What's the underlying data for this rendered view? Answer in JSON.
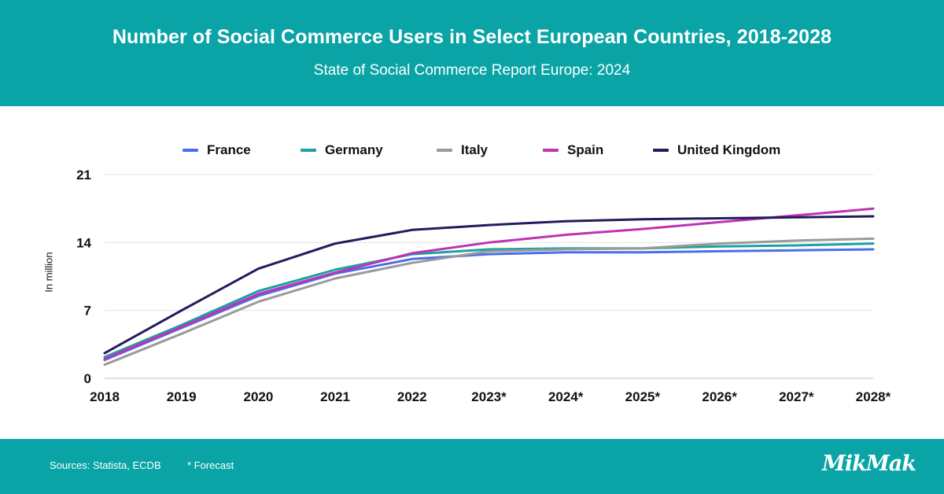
{
  "header": {
    "title": "Number of Social Commerce Users in Select European Countries, 2018-2028",
    "subtitle": "State of Social Commerce Report Europe: 2024"
  },
  "footer": {
    "sources": "Sources: Statista, ECDB",
    "forecast_note": "* Forecast",
    "logo": "MikMak"
  },
  "chart_data": {
    "type": "line",
    "title": "Number of Social Commerce Users in Select European Countries, 2018-2028",
    "subtitle": "State of Social Commerce Report Europe: 2024",
    "ylabel": "In million",
    "xlabel": "",
    "categories": [
      "2018",
      "2019",
      "2020",
      "2021",
      "2022",
      "2023*",
      "2024*",
      "2025*",
      "2026*",
      "2027*",
      "2028*"
    ],
    "ylim": [
      0,
      21
    ],
    "yticks": [
      "0",
      "7",
      "14",
      "21"
    ],
    "grid": true,
    "legend_position": "top",
    "series": [
      {
        "name": "France",
        "color": "#4a6ee8",
        "values": [
          1.9,
          5.2,
          8.5,
          10.8,
          12.3,
          12.8,
          13.0,
          13.0,
          13.1,
          13.2,
          13.3
        ]
      },
      {
        "name": "Germany",
        "color": "#1aa3a0",
        "values": [
          2.2,
          5.5,
          9.0,
          11.2,
          12.8,
          13.3,
          13.4,
          13.4,
          13.6,
          13.7,
          13.9
        ]
      },
      {
        "name": "Italy",
        "color": "#9a9a9a",
        "values": [
          1.4,
          4.6,
          7.9,
          10.3,
          11.9,
          13.1,
          13.3,
          13.4,
          13.9,
          14.2,
          14.4
        ]
      },
      {
        "name": "Spain",
        "color": "#c032b4",
        "values": [
          2.0,
          5.3,
          8.7,
          10.9,
          12.9,
          14.0,
          14.8,
          15.4,
          16.1,
          16.8,
          17.5
        ]
      },
      {
        "name": "United Kingdom",
        "color": "#221c5e",
        "values": [
          2.6,
          7.0,
          11.3,
          13.9,
          15.3,
          15.8,
          16.2,
          16.4,
          16.5,
          16.6,
          16.7
        ]
      }
    ]
  }
}
